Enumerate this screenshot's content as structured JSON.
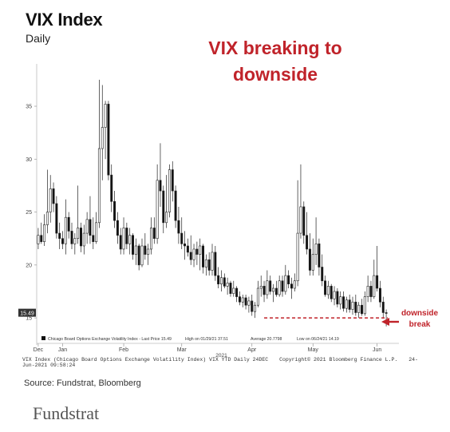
{
  "title": "VIX Index",
  "subtitle": "Daily",
  "annotation": {
    "headline_line1": "VIX breaking to",
    "headline_line2": "downside",
    "break_line1": "downside",
    "break_line2": "break",
    "color": "#c0232a"
  },
  "legend_text": {
    "series": "Chicago Board Options Exchange Volatility Index - Last Price 15.49",
    "high": "High on 01/29/21 37.51",
    "average": "Average 20.7798",
    "low": "Low on 06/24/21 14.19"
  },
  "footer": {
    "left": "VIX Index (Chicago Board Options Exchange Volatility Index) VIX YTD  Daily 24DEC",
    "copyright": "Copyright© 2021 Bloomberg Finance L.P.",
    "timestamp": "24-Jun-2021 09:58:24"
  },
  "source": "Source: Fundstrat, Bloomberg",
  "logo": "Fundstrat",
  "chart_data": {
    "type": "candlestick",
    "title": "VIX Index",
    "subtitle": "Daily",
    "last_price": 15.49,
    "last_price_label": "15.49",
    "ylim": [
      13.5,
      39
    ],
    "y_ticks": [
      15,
      20,
      25,
      30,
      35
    ],
    "y_tick_labels": [
      "15",
      "20",
      "25",
      "30",
      "35"
    ],
    "x_ticks": [
      {
        "label": "Dec",
        "index": 0
      },
      {
        "label": "Jan",
        "index": 8
      },
      {
        "label": "Feb",
        "index": 28
      },
      {
        "label": "Mar",
        "index": 47
      },
      {
        "label": "Apr",
        "index": 70
      },
      {
        "label": "May",
        "index": 90
      },
      {
        "label": "Jun",
        "index": 111
      }
    ],
    "year_label": {
      "label": "2021",
      "index": 60
    },
    "breakdown_level": 15.0,
    "breakdown_start_index": 74,
    "colors": {
      "up": "#ffffff",
      "down": "#111111",
      "wick": "#222222",
      "last_price_box": "#333333"
    },
    "ohlc": [
      [
        22.0,
        23.5,
        21.5,
        22.8
      ],
      [
        22.8,
        24.0,
        22.0,
        22.2
      ],
      [
        22.2,
        24.8,
        21.8,
        23.8
      ],
      [
        23.8,
        29.0,
        23.0,
        25.0
      ],
      [
        25.0,
        28.5,
        24.0,
        27.2
      ],
      [
        27.2,
        27.8,
        25.0,
        25.8
      ],
      [
        25.8,
        26.5,
        22.5,
        23.0
      ],
      [
        23.0,
        24.0,
        21.5,
        22.5
      ],
      [
        22.5,
        23.2,
        21.5,
        22.0
      ],
      [
        22.0,
        26.2,
        21.0,
        24.5
      ],
      [
        24.5,
        25.0,
        22.5,
        23.2
      ],
      [
        23.2,
        24.0,
        21.5,
        22.0
      ],
      [
        22.0,
        23.0,
        21.0,
        22.5
      ],
      [
        22.5,
        27.5,
        22.0,
        23.5
      ],
      [
        23.5,
        24.0,
        21.2,
        21.8
      ],
      [
        21.8,
        23.8,
        21.0,
        23.0
      ],
      [
        23.0,
        25.0,
        22.0,
        24.3
      ],
      [
        24.3,
        26.5,
        22.0,
        22.8
      ],
      [
        22.8,
        24.5,
        21.5,
        22.2
      ],
      [
        22.2,
        25.0,
        22.0,
        24.0
      ],
      [
        24.0,
        37.5,
        23.5,
        31.0
      ],
      [
        31.0,
        37.0,
        28.0,
        33.0
      ],
      [
        33.0,
        35.5,
        30.0,
        35.2
      ],
      [
        35.2,
        35.5,
        28.0,
        28.5
      ],
      [
        28.5,
        29.5,
        25.0,
        26.0
      ],
      [
        26.0,
        27.0,
        23.5,
        24.2
      ],
      [
        24.2,
        25.0,
        22.0,
        22.8
      ],
      [
        22.8,
        23.5,
        21.0,
        21.5
      ],
      [
        21.5,
        24.5,
        21.0,
        23.5
      ],
      [
        23.5,
        24.0,
        21.5,
        22.0
      ],
      [
        22.0,
        23.5,
        21.0,
        22.8
      ],
      [
        22.8,
        23.0,
        20.5,
        21.0
      ],
      [
        21.0,
        22.5,
        20.0,
        21.8
      ],
      [
        21.8,
        22.0,
        19.5,
        20.0
      ],
      [
        20.0,
        22.5,
        19.8,
        21.8
      ],
      [
        21.8,
        23.0,
        20.5,
        21.0
      ],
      [
        21.0,
        22.0,
        20.0,
        21.5
      ],
      [
        21.5,
        24.5,
        21.0,
        23.5
      ],
      [
        23.5,
        24.5,
        22.0,
        22.5
      ],
      [
        22.5,
        29.5,
        22.0,
        28.0
      ],
      [
        28.0,
        31.5,
        25.5,
        27.0
      ],
      [
        27.0,
        27.5,
        23.0,
        24.0
      ],
      [
        24.0,
        28.5,
        23.5,
        25.0
      ],
      [
        25.0,
        29.5,
        24.5,
        29.0
      ],
      [
        29.0,
        29.8,
        26.0,
        27.0
      ],
      [
        27.0,
        27.5,
        23.5,
        24.2
      ],
      [
        24.2,
        25.5,
        22.0,
        23.0
      ],
      [
        23.0,
        24.5,
        21.5,
        22.0
      ],
      [
        22.0,
        23.2,
        20.5,
        21.8
      ],
      [
        21.8,
        22.5,
        20.8,
        21.2
      ],
      [
        21.2,
        22.8,
        20.0,
        20.5
      ],
      [
        20.5,
        22.0,
        19.8,
        21.5
      ],
      [
        21.5,
        22.2,
        20.0,
        21.0
      ],
      [
        21.0,
        22.5,
        19.5,
        21.8
      ],
      [
        21.8,
        22.0,
        19.2,
        19.8
      ],
      [
        19.8,
        21.0,
        19.0,
        20.5
      ],
      [
        20.5,
        21.2,
        19.0,
        19.5
      ],
      [
        19.5,
        22.0,
        19.0,
        21.2
      ],
      [
        21.2,
        21.8,
        18.5,
        19.0
      ],
      [
        19.0,
        19.8,
        17.8,
        18.2
      ],
      [
        18.2,
        19.5,
        17.5,
        18.8
      ],
      [
        18.8,
        19.2,
        17.8,
        18.0
      ],
      [
        18.0,
        18.8,
        17.2,
        18.3
      ],
      [
        18.3,
        18.5,
        17.0,
        17.3
      ],
      [
        17.3,
        18.5,
        17.0,
        17.8
      ],
      [
        17.8,
        18.0,
        16.5,
        17.0
      ],
      [
        17.0,
        17.5,
        16.2,
        16.5
      ],
      [
        16.5,
        17.2,
        16.0,
        16.9
      ],
      [
        16.9,
        17.2,
        15.8,
        16.2
      ],
      [
        16.2,
        17.0,
        15.5,
        16.6
      ],
      [
        16.6,
        17.2,
        15.2,
        15.6
      ],
      [
        15.6,
        16.5,
        15.0,
        16.2
      ],
      [
        16.2,
        18.5,
        16.0,
        17.8
      ],
      [
        17.8,
        19.0,
        17.0,
        18.0
      ],
      [
        18.0,
        18.5,
        16.5,
        17.2
      ],
      [
        17.2,
        19.5,
        16.8,
        18.5
      ],
      [
        18.5,
        19.0,
        17.2,
        17.5
      ],
      [
        17.5,
        18.2,
        16.5,
        17.8
      ],
      [
        17.8,
        18.5,
        17.0,
        17.2
      ],
      [
        17.2,
        19.0,
        17.0,
        18.5
      ],
      [
        18.5,
        19.0,
        17.0,
        17.5
      ],
      [
        17.5,
        20.0,
        17.2,
        19.0
      ],
      [
        19.0,
        19.5,
        17.8,
        18.2
      ],
      [
        18.2,
        18.8,
        16.8,
        17.8
      ],
      [
        17.8,
        19.2,
        17.5,
        18.5
      ],
      [
        18.5,
        28.0,
        18.0,
        23.0
      ],
      [
        23.0,
        29.5,
        22.5,
        25.5
      ],
      [
        25.5,
        26.0,
        22.0,
        22.8
      ],
      [
        22.8,
        25.0,
        21.0,
        21.5
      ],
      [
        21.5,
        23.0,
        19.0,
        19.5
      ],
      [
        19.5,
        22.5,
        19.0,
        21.0
      ],
      [
        21.0,
        24.5,
        20.0,
        22.0
      ],
      [
        22.0,
        22.5,
        19.0,
        19.8
      ],
      [
        19.8,
        21.0,
        18.0,
        18.5
      ],
      [
        18.5,
        19.0,
        17.0,
        17.2
      ],
      [
        17.2,
        18.5,
        16.8,
        18.0
      ],
      [
        18.0,
        18.2,
        16.5,
        16.8
      ],
      [
        16.8,
        18.0,
        16.2,
        17.5
      ],
      [
        17.5,
        17.8,
        16.0,
        16.3
      ],
      [
        16.3,
        17.5,
        15.8,
        17.0
      ],
      [
        17.0,
        17.5,
        15.6,
        15.9
      ],
      [
        15.9,
        17.0,
        15.5,
        16.7
      ],
      [
        16.7,
        17.2,
        15.5,
        15.8
      ],
      [
        15.8,
        17.0,
        15.3,
        16.5
      ],
      [
        16.5,
        17.2,
        15.2,
        15.5
      ],
      [
        15.5,
        16.5,
        15.0,
        16.2
      ],
      [
        16.2,
        16.8,
        15.2,
        15.4
      ],
      [
        15.4,
        17.5,
        15.2,
        17.0
      ],
      [
        17.0,
        19.0,
        16.5,
        18.0
      ],
      [
        18.0,
        18.5,
        16.5,
        17.0
      ],
      [
        17.0,
        20.5,
        16.8,
        19.0
      ],
      [
        19.0,
        21.8,
        17.5,
        17.8
      ],
      [
        17.8,
        18.5,
        16.0,
        16.5
      ],
      [
        16.5,
        17.0,
        15.0,
        15.5
      ],
      [
        15.5,
        15.8,
        14.2,
        15.49
      ]
    ]
  }
}
